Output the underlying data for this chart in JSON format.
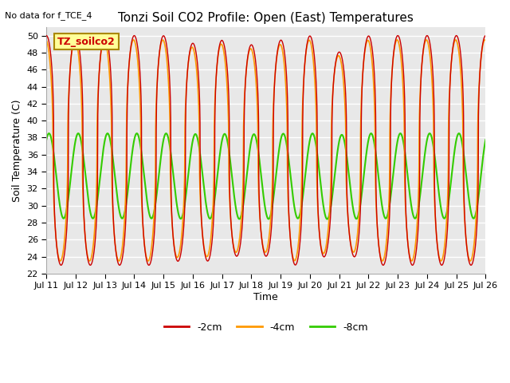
{
  "title": "Tonzi Soil CO2 Profile: Open (East) Temperatures",
  "subtitle": "No data for f_TCE_4",
  "ylabel": "Soil Temperature (C)",
  "xlabel": "Time",
  "ylim": [
    22,
    51
  ],
  "yticks": [
    22,
    24,
    26,
    28,
    30,
    32,
    34,
    36,
    38,
    40,
    42,
    44,
    46,
    48,
    50
  ],
  "bg_color": "#e8e8e8",
  "fig_color": "#ffffff",
  "grid_color": "#ffffff",
  "line_2cm_color": "#cc0000",
  "line_4cm_color": "#ff9900",
  "line_8cm_color": "#33cc00",
  "legend_label_2cm": "-2cm",
  "legend_label_4cm": "-4cm",
  "legend_label_8cm": "-8cm",
  "annotation_text": "TZ_soilco2",
  "annotation_color": "#cc0000",
  "annotation_bg": "#ffff99",
  "annotation_border": "#aa8800",
  "n_points": 3000,
  "t_start": 11.0,
  "t_end": 26.0,
  "xtick_positions": [
    11,
    12,
    13,
    14,
    15,
    16,
    17,
    18,
    19,
    20,
    21,
    22,
    23,
    24,
    25,
    26
  ],
  "xtick_labels": [
    "Jul 11",
    "Jul 12",
    "Jul 13",
    "Jul 14",
    "Jul 15",
    "Jul 16",
    "Jul 17",
    "Jul 18",
    "Jul 19",
    "Jul 20",
    "Jul 21",
    "Jul 22",
    "Jul 23",
    "Jul 24",
    "Jul 25",
    "Jul 26"
  ]
}
